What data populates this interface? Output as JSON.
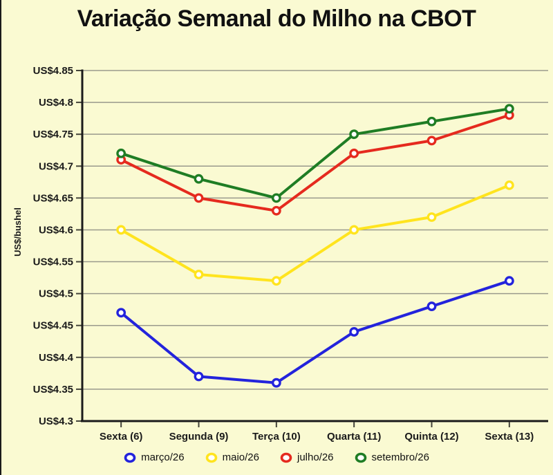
{
  "page": {
    "background_color": "#FAFAD2",
    "text_color": "#1a1a1a"
  },
  "chart_data": {
    "type": "line",
    "title": "Variação Semanal do Milho na CBOT",
    "ylabel": "US$/bushel",
    "xlabel": "",
    "ylim": [
      4.3,
      4.85
    ],
    "y_tick_step": 0.05,
    "y_tick_labels": [
      "US$4.3",
      "US$4.35",
      "US$4.4",
      "US$4.45",
      "US$4.5",
      "US$4.55",
      "US$4.6",
      "US$4.65",
      "US$4.7",
      "US$4.75",
      "US$4.8",
      "US$4.85"
    ],
    "categories": [
      "Sexta (6)",
      "Segunda (9)",
      "Terça (10)",
      "Quarta (11)",
      "Quinta (12)",
      "Sexta (13)"
    ],
    "series": [
      {
        "name": "março/26",
        "color": "#2323DC",
        "values": [
          4.47,
          4.37,
          4.36,
          4.44,
          4.48,
          4.52
        ]
      },
      {
        "name": "maio/26",
        "color": "#FFE41E",
        "values": [
          4.6,
          4.53,
          4.52,
          4.6,
          4.62,
          4.67
        ]
      },
      {
        "name": "julho/26",
        "color": "#E52A1E",
        "values": [
          4.71,
          4.65,
          4.63,
          4.72,
          4.74,
          4.78
        ]
      },
      {
        "name": "setembro/26",
        "color": "#1F7D24",
        "values": [
          4.72,
          4.68,
          4.65,
          4.75,
          4.77,
          4.79
        ]
      }
    ],
    "grid": true,
    "grid_color": "#99998C",
    "axis_color": "#1a1a1a",
    "legend_position": "bottom",
    "marker": "open-circle"
  }
}
